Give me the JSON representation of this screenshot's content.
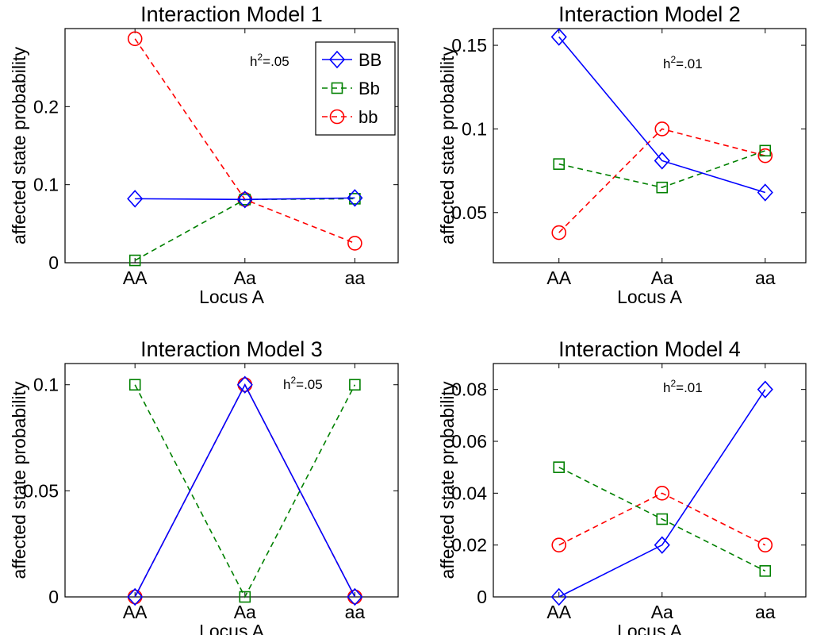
{
  "chart_data": [
    {
      "type": "line",
      "title": "Interaction Model 1",
      "xlabel": "Locus A",
      "ylabel": "affected state probability",
      "categories": [
        "AA",
        "Aa",
        "aa"
      ],
      "ylim": [
        0,
        0.3
      ],
      "yticks": [
        0,
        0.1,
        0.2
      ],
      "ytick_labels": [
        "0",
        "0.1",
        "0.2"
      ],
      "annotation": {
        "base": "h",
        "sup": "2",
        "rest": "=.05"
      },
      "legend": {
        "placement": "top-right",
        "entries": [
          "BB",
          "Bb",
          "bb"
        ]
      },
      "series": [
        {
          "name": "BB",
          "values": [
            0.082,
            0.081,
            0.083
          ]
        },
        {
          "name": "Bb",
          "values": [
            0.003,
            0.081,
            0.082
          ]
        },
        {
          "name": "bb",
          "values": [
            0.287,
            0.081,
            0.025
          ]
        }
      ]
    },
    {
      "type": "line",
      "title": "Interaction Model 2",
      "xlabel": "Locus A",
      "ylabel": "affected state probability",
      "categories": [
        "AA",
        "Aa",
        "aa"
      ],
      "ylim": [
        0.02,
        0.16
      ],
      "yticks": [
        0.05,
        0.1,
        0.15
      ],
      "ytick_labels": [
        "0.05",
        "0.1",
        "0.15"
      ],
      "annotation": {
        "base": "h",
        "sup": "2",
        "rest": "=.01"
      },
      "series": [
        {
          "name": "BB",
          "values": [
            0.155,
            0.081,
            0.062
          ]
        },
        {
          "name": "Bb",
          "values": [
            0.079,
            0.065,
            0.087
          ]
        },
        {
          "name": "bb",
          "values": [
            0.038,
            0.1,
            0.084
          ]
        }
      ]
    },
    {
      "type": "line",
      "title": "Interaction Model 3",
      "xlabel": "Locus A",
      "ylabel": "affected state probability",
      "categories": [
        "AA",
        "Aa",
        "aa"
      ],
      "ylim": [
        0,
        0.11
      ],
      "yticks": [
        0,
        0.05,
        0.1
      ],
      "ytick_labels": [
        "0",
        "0.05",
        "0.1"
      ],
      "annotation": {
        "base": "h",
        "sup": "2",
        "rest": "=.05"
      },
      "series": [
        {
          "name": "BB",
          "values": [
            0,
            0.1,
            0
          ]
        },
        {
          "name": "Bb",
          "values": [
            0.1,
            0,
            0.1
          ]
        },
        {
          "name": "bb",
          "values": [
            0,
            0.1,
            0
          ]
        }
      ]
    },
    {
      "type": "line",
      "title": "Interaction Model 4",
      "xlabel": "Locus A",
      "ylabel": "affected state probability",
      "categories": [
        "AA",
        "Aa",
        "aa"
      ],
      "ylim": [
        0,
        0.09
      ],
      "yticks": [
        0,
        0.02,
        0.04,
        0.06,
        0.08
      ],
      "ytick_labels": [
        "0",
        "0.02",
        "0.04",
        "0.06",
        "0.08"
      ],
      "annotation": {
        "base": "h",
        "sup": "2",
        "rest": "=.01"
      },
      "series": [
        {
          "name": "BB",
          "values": [
            0,
            0.02,
            0.08
          ]
        },
        {
          "name": "Bb",
          "values": [
            0.05,
            0.03,
            0.01
          ]
        },
        {
          "name": "bb",
          "values": [
            0.02,
            0.04,
            0.02
          ]
        }
      ]
    }
  ],
  "series_style": {
    "BB": {
      "color": "#0000ff",
      "marker": "diamond",
      "line": "solid"
    },
    "Bb": {
      "color": "#008000",
      "marker": "square",
      "line": "dashed"
    },
    "bb": {
      "color": "#ff0000",
      "marker": "circle",
      "line": "dashed"
    }
  }
}
